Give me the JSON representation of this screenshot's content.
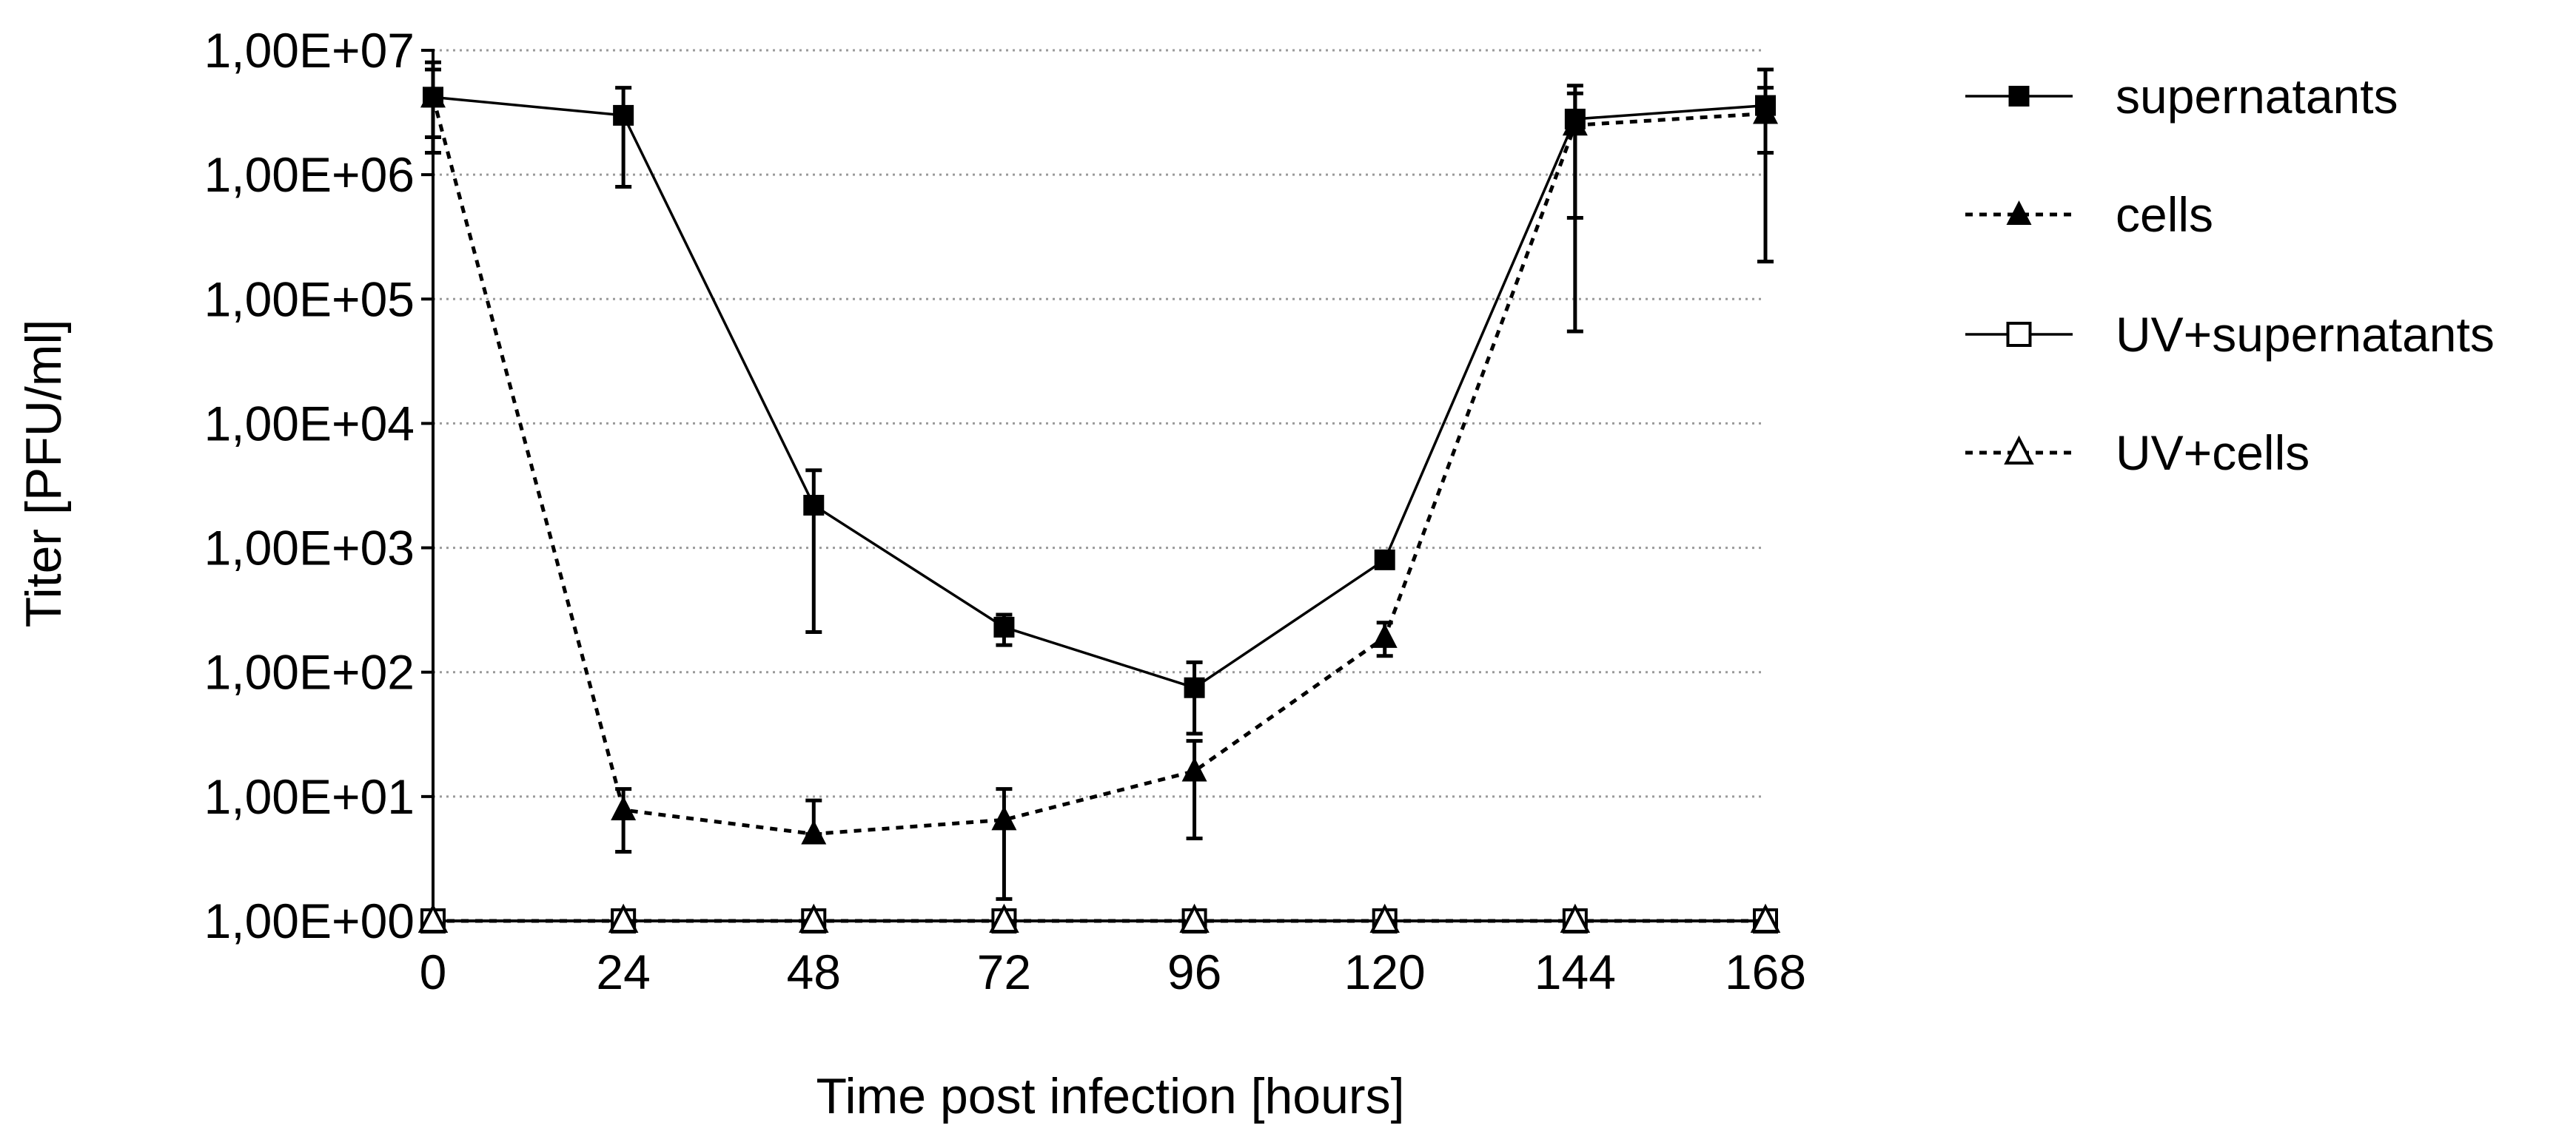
{
  "chart_data": {
    "type": "line",
    "title": "",
    "xlabel": "Time post infection [hours]",
    "ylabel": "Titer [PFU/ml]",
    "yscale": "log",
    "ylim": [
      1,
      10000000
    ],
    "xlim": [
      0,
      168
    ],
    "grid": "horizontal dotted",
    "legend_position": "right",
    "x_ticks": [
      0,
      24,
      48,
      72,
      96,
      120,
      144,
      168
    ],
    "x_tick_labels": [
      "0",
      "24",
      "48",
      "72",
      "96",
      "120",
      "144",
      "168"
    ],
    "y_ticks": [
      1,
      10,
      100,
      1000,
      10000,
      100000,
      1000000,
      10000000
    ],
    "y_tick_labels": [
      "1,00E+00",
      "1,00E+01",
      "1,00E+02",
      "1,00E+03",
      "1,00E+04",
      "1,00E+05",
      "1,00E+06",
      "1,00E+07"
    ],
    "x": [
      0,
      24,
      48,
      72,
      96,
      120,
      144,
      168
    ],
    "series": [
      {
        "name": "supernatants",
        "marker": "square-filled",
        "line": "solid",
        "values": [
          4200000,
          3000000,
          2200,
          230,
          75,
          800,
          2800000,
          3600000
        ],
        "err_upper": [
          8000000,
          5000000,
          4200,
          290,
          120,
          850,
          5200000,
          7000000
        ],
        "err_lower": [
          2000000,
          800000,
          210,
          165,
          32,
          700,
          450000,
          200000
        ]
      },
      {
        "name": "cells",
        "marker": "triangle-filled",
        "line": "dotted",
        "values": [
          4200000,
          7.8,
          5,
          6.5,
          16,
          190,
          2500000,
          3100000
        ],
        "err_upper": [
          7000000,
          11.5,
          9.3,
          11.5,
          28,
          250,
          4500000,
          5000000
        ],
        "err_lower": [
          1500000,
          3.6,
          5,
          1.5,
          4.6,
          135,
          55000,
          1500000
        ]
      },
      {
        "name": "UV+supernatants",
        "marker": "square-open",
        "line": "solid",
        "values": [
          1,
          1,
          1,
          1,
          1,
          1,
          1,
          1
        ]
      },
      {
        "name": "UV+cells",
        "marker": "triangle-open",
        "line": "dotted",
        "values": [
          1,
          1,
          1,
          1,
          1,
          1,
          1,
          1
        ]
      }
    ]
  }
}
